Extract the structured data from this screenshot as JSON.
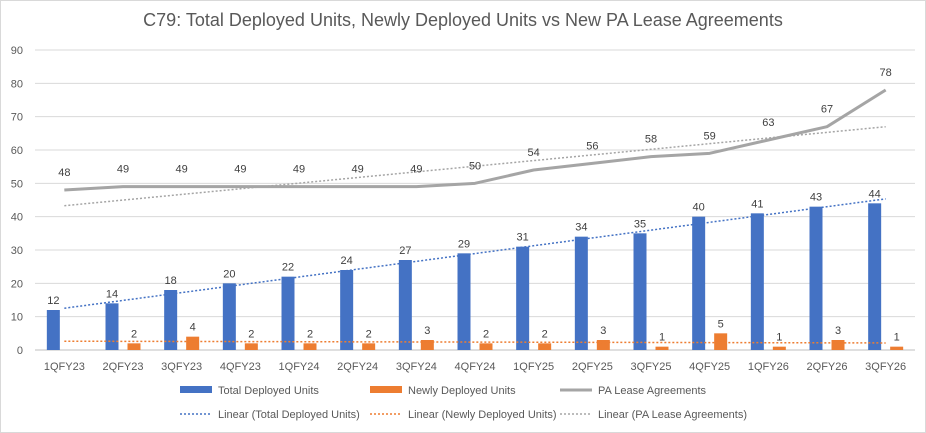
{
  "chart_data": {
    "type": "bar",
    "title": "C79: Total Deployed Units, Newly Deployed Units vs New PA Lease Agreements",
    "categories": [
      "1QFY23",
      "2QFY23",
      "3QFY23",
      "4QFY23",
      "1QFY24",
      "2QFY24",
      "3QFY24",
      "4QFY24",
      "1QFY25",
      "2QFY25",
      "3QFY25",
      "4QFY25",
      "1QFY26",
      "2QFY26",
      "3QFY26"
    ],
    "ylim": [
      0,
      90
    ],
    "yticks": [
      0,
      10,
      20,
      30,
      40,
      50,
      60,
      70,
      80,
      90
    ],
    "grid": true,
    "legend_position": "bottom",
    "series": [
      {
        "name": "Total Deployed Units",
        "kind": "bar",
        "color": "#4472c4",
        "values": [
          12,
          14,
          18,
          20,
          22,
          24,
          27,
          29,
          31,
          34,
          35,
          40,
          41,
          43,
          44
        ]
      },
      {
        "name": "Newly Deployed Units",
        "kind": "bar",
        "color": "#ed7d31",
        "values": [
          null,
          2,
          4,
          2,
          2,
          2,
          3,
          2,
          2,
          3,
          1,
          5,
          1,
          3,
          1
        ]
      },
      {
        "name": "PA Lease Agreements",
        "kind": "line",
        "color": "#a5a5a5",
        "values": [
          48,
          49,
          49,
          49,
          49,
          49,
          49,
          50,
          54,
          56,
          58,
          59,
          63,
          67,
          78
        ]
      }
    ],
    "trendlines": [
      {
        "name": "Linear (Total Deployed Units)",
        "color": "#4472c4",
        "of": 0
      },
      {
        "name": "Linear (Newly Deployed Units)",
        "color": "#ed7d31",
        "of": 1
      },
      {
        "name": "Linear (PA Lease Agreements)",
        "color": "#a5a5a5",
        "of": 2
      }
    ]
  }
}
